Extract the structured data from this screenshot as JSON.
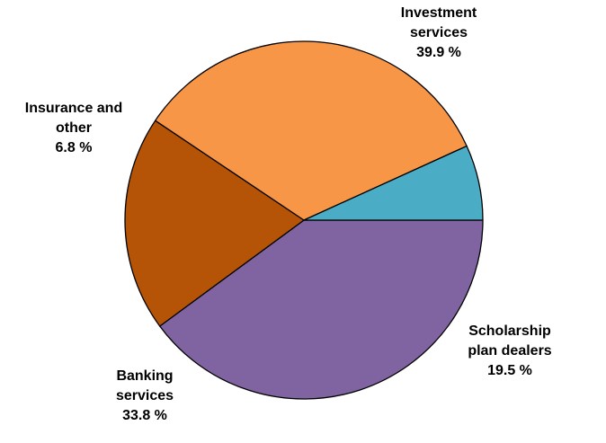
{
  "chart_data": {
    "type": "pie",
    "slices": [
      {
        "label_lines": [
          "Investment",
          "services"
        ],
        "value_text": "39.9 %",
        "value": 39.9,
        "color": "#8064a2"
      },
      {
        "label_lines": [
          "Scholarship",
          "plan dealers"
        ],
        "value_text": "19.5 %",
        "value": 19.5,
        "color": "#b55406"
      },
      {
        "label_lines": [
          "Banking",
          "services"
        ],
        "value_text": "33.8 %",
        "value": 33.8,
        "color": "#f79646"
      },
      {
        "label_lines": [
          "Insurance and",
          "other"
        ],
        "value_text": "6.8 %",
        "value": 6.8,
        "color": "#4bacc6"
      }
    ],
    "start_angle_deg": 0,
    "direction": "clockwise",
    "stroke_color": "#000000"
  }
}
